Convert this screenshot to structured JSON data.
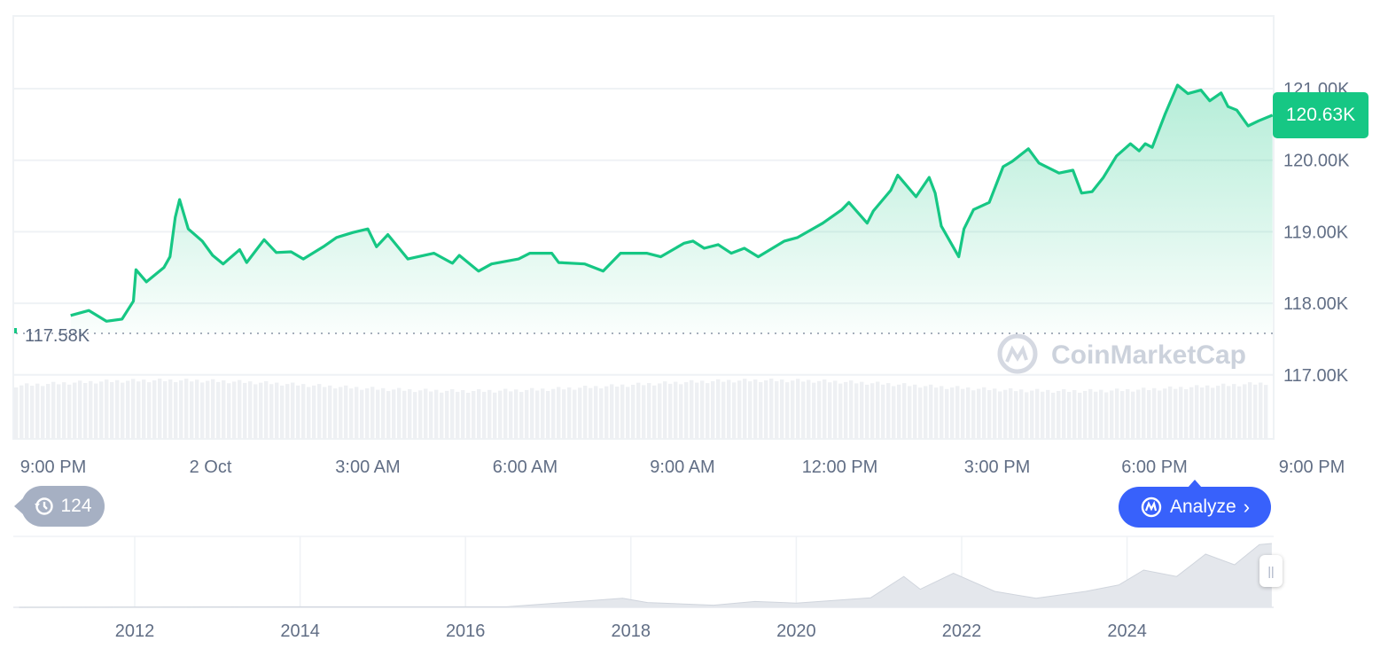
{
  "chart_data": {
    "type": "area",
    "main": {
      "y_ticks": [
        "121.00K",
        "120.00K",
        "119.00K",
        "118.00K",
        "117.00K"
      ],
      "y_tick_values": [
        121,
        120,
        119,
        118,
        117
      ],
      "ylim_k": [
        116.2,
        122.0
      ],
      "x_ticks": [
        "9:00 PM",
        "2 Oct",
        "3:00 AM",
        "6:00 AM",
        "9:00 AM",
        "12:00 PM",
        "3:00 PM",
        "6:00 PM",
        "9:00 PM"
      ],
      "start_label": "117.58K",
      "start_value_k": 117.58,
      "current_label": "120.63K",
      "current_value_k": 120.63,
      "line_color": "#16c784",
      "points": [
        [
          "21:20",
          117.83
        ],
        [
          "21:41",
          117.9
        ],
        [
          "22:01",
          117.75
        ],
        [
          "22:19",
          117.78
        ],
        [
          "22:32",
          118.03
        ],
        [
          "22:35",
          118.47
        ],
        [
          "22:47",
          118.3
        ],
        [
          "23:07",
          118.5
        ],
        [
          "23:14",
          118.65
        ],
        [
          "23:20",
          119.2
        ],
        [
          "23:25",
          119.45
        ],
        [
          "23:35",
          119.04
        ],
        [
          "23:51",
          118.87
        ],
        [
          "00:03",
          118.67
        ],
        [
          "00:15",
          118.55
        ],
        [
          "00:34",
          118.75
        ],
        [
          "00:42",
          118.57
        ],
        [
          "01:02",
          118.89
        ],
        [
          "01:16",
          118.71
        ],
        [
          "01:33",
          118.72
        ],
        [
          "01:47",
          118.62
        ],
        [
          "02:10",
          118.79
        ],
        [
          "02:25",
          118.92
        ],
        [
          "02:44",
          118.99
        ],
        [
          "03:01",
          119.04
        ],
        [
          "03:11",
          118.79
        ],
        [
          "03:24",
          118.96
        ],
        [
          "03:47",
          118.62
        ],
        [
          "04:17",
          118.7
        ],
        [
          "04:38",
          118.56
        ],
        [
          "04:46",
          118.67
        ],
        [
          "05:08",
          118.45
        ],
        [
          "05:23",
          118.55
        ],
        [
          "05:54",
          118.62
        ],
        [
          "06:07",
          118.7
        ],
        [
          "06:32",
          118.7
        ],
        [
          "06:40",
          118.57
        ],
        [
          "07:10",
          118.55
        ],
        [
          "07:31",
          118.45
        ],
        [
          "07:51",
          118.7
        ],
        [
          "08:21",
          118.7
        ],
        [
          "08:37",
          118.65
        ],
        [
          "09:04",
          118.84
        ],
        [
          "09:14",
          118.87
        ],
        [
          "09:27",
          118.77
        ],
        [
          "09:43",
          118.82
        ],
        [
          "09:58",
          118.7
        ],
        [
          "10:13",
          118.77
        ],
        [
          "10:29",
          118.65
        ],
        [
          "10:59",
          118.87
        ],
        [
          "11:14",
          118.92
        ],
        [
          "11:43",
          119.12
        ],
        [
          "12:05",
          119.31
        ],
        [
          "12:13",
          119.41
        ],
        [
          "12:34",
          119.12
        ],
        [
          "12:41",
          119.29
        ],
        [
          "13:01",
          119.58
        ],
        [
          "13:09",
          119.79
        ],
        [
          "13:30",
          119.49
        ],
        [
          "13:45",
          119.76
        ],
        [
          "13:52",
          119.54
        ],
        [
          "13:59",
          119.08
        ],
        [
          "14:19",
          118.65
        ],
        [
          "14:25",
          119.04
        ],
        [
          "14:36",
          119.31
        ],
        [
          "14:54",
          119.41
        ],
        [
          "15:10",
          119.91
        ],
        [
          "15:20",
          119.98
        ],
        [
          "15:39",
          120.16
        ],
        [
          "15:51",
          119.96
        ],
        [
          "16:14",
          119.82
        ],
        [
          "16:30",
          119.86
        ],
        [
          "16:40",
          119.54
        ],
        [
          "16:52",
          119.56
        ],
        [
          "17:05",
          119.76
        ],
        [
          "17:20",
          120.06
        ],
        [
          "17:36",
          120.23
        ],
        [
          "17:46",
          120.13
        ],
        [
          "17:53",
          120.23
        ],
        [
          "18:01",
          120.18
        ],
        [
          "18:16",
          120.65
        ],
        [
          "18:30",
          121.05
        ],
        [
          "18:42",
          120.93
        ],
        [
          "18:57",
          120.98
        ],
        [
          "19:07",
          120.83
        ],
        [
          "19:20",
          120.94
        ],
        [
          "19:28",
          120.75
        ],
        [
          "19:38",
          120.7
        ],
        [
          "19:51",
          120.48
        ],
        [
          "20:03",
          120.55
        ],
        [
          "20:19",
          120.63
        ]
      ]
    },
    "overview": {
      "x_ticks": [
        "2012",
        "2014",
        "2016",
        "2018",
        "2020",
        "2022",
        "2024"
      ],
      "points": [
        [
          2010.6,
          0
        ],
        [
          2013.8,
          1
        ],
        [
          2016.5,
          1
        ],
        [
          2017.9,
          17
        ],
        [
          2018.2,
          9
        ],
        [
          2019.0,
          4
        ],
        [
          2019.5,
          11
        ],
        [
          2020.0,
          8
        ],
        [
          2020.9,
          18
        ],
        [
          2021.3,
          58
        ],
        [
          2021.5,
          34
        ],
        [
          2021.9,
          64
        ],
        [
          2022.4,
          30
        ],
        [
          2022.9,
          17
        ],
        [
          2023.5,
          30
        ],
        [
          2023.9,
          42
        ],
        [
          2024.2,
          70
        ],
        [
          2024.6,
          58
        ],
        [
          2024.95,
          100
        ],
        [
          2025.3,
          80
        ],
        [
          2025.6,
          118
        ],
        [
          2025.75,
          120
        ]
      ]
    }
  },
  "watermark": "CoinMarketCap",
  "history_button": {
    "icon": "history-clock-icon",
    "count": "124"
  },
  "analyze_button": {
    "icon": "cmc-chat-icon",
    "label": "Analyze",
    "chevron": "chevron-right-icon"
  }
}
